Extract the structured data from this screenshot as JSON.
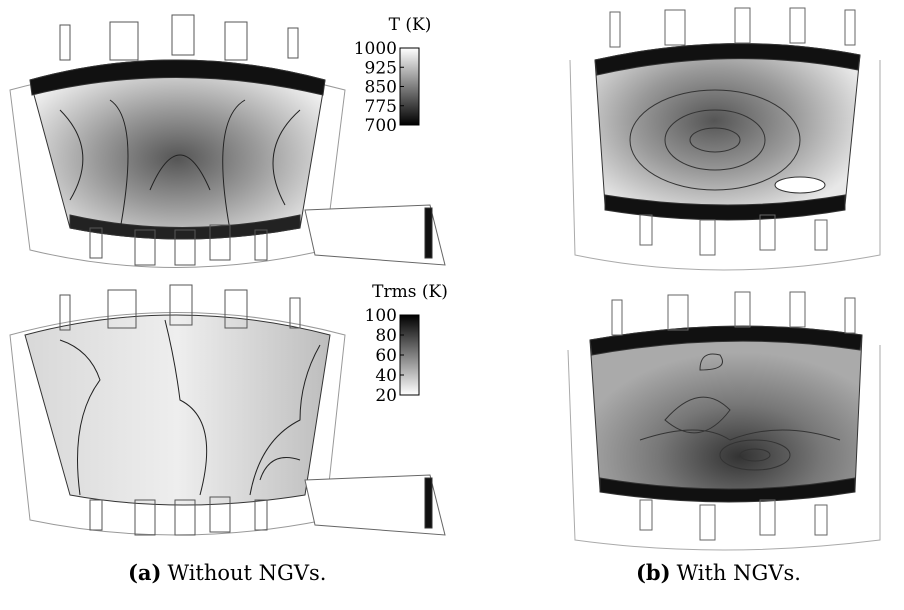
{
  "colorbars": [
    {
      "title": "T (K)",
      "ticks": [
        1000,
        925,
        850,
        775,
        700
      ]
    },
    {
      "title": "Trms (K)",
      "ticks": [
        100,
        80,
        60,
        40,
        20
      ]
    }
  ],
  "captions": [
    {
      "label": "(a)",
      "text": "Without NGVs."
    },
    {
      "label": "(b)",
      "text": "With NGVs."
    }
  ]
}
